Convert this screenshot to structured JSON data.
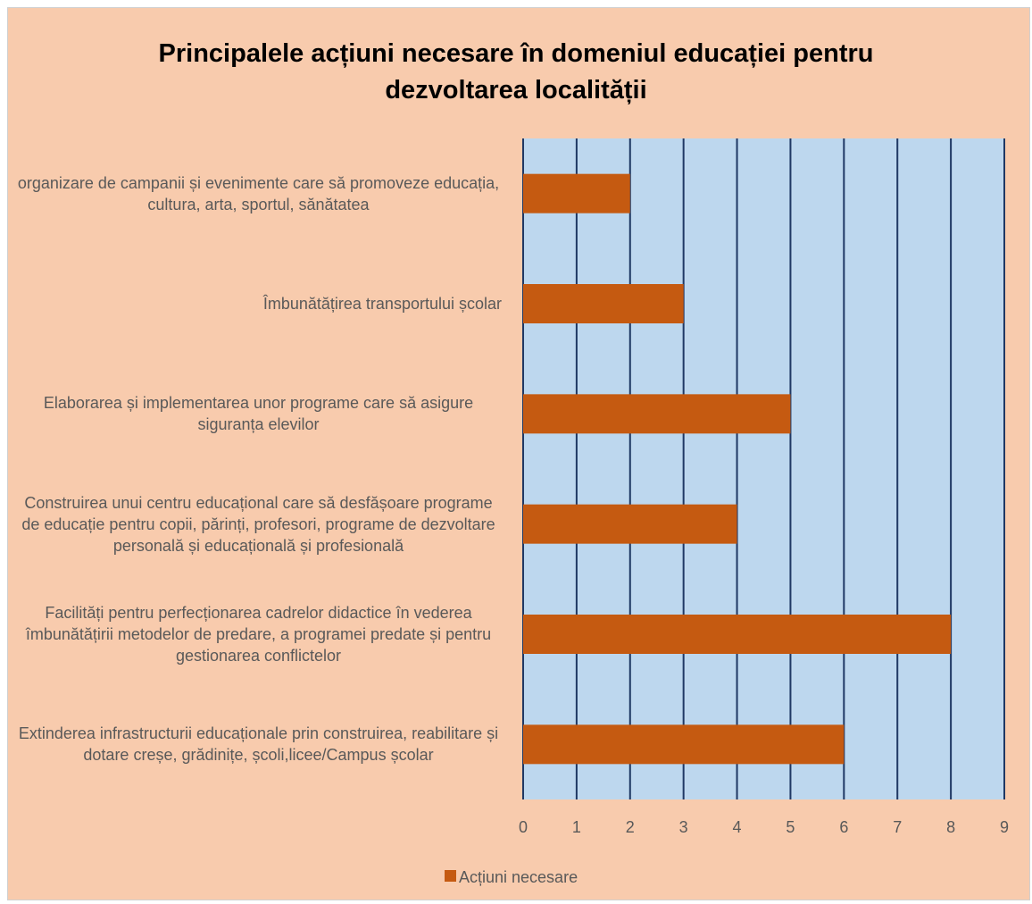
{
  "chart_data": {
    "type": "barh",
    "title": "Principalele acțiuni necesare în domeniul educației pentru dezvoltarea localității",
    "categories": [
      "organizare de campanii și evenimente care să promoveze educația, cultura, arta, sportul, sănătatea",
      "Îmbunătățirea transportului școlar",
      "Elaborarea și implementarea unor programe care să asigure siguranța elevilor",
      "Construirea unui centru educațional care să desfășoare programe de educație pentru copii, părinți, profesori, programe de dezvoltare personală și educațională și profesională",
      "Facilități pentru perfecționarea cadrelor didactice în vederea îmbunătățirii metodelor de predare, a programei predate și pentru gestionarea conflictelor",
      "Extinderea infrastructurii educaționale prin construirea, reabilitare și dotare creșe, grădinițe, școli,licee/Campus școlar"
    ],
    "series": [
      {
        "name": "Acțiuni necesare",
        "color": "#c55a11",
        "values": [
          2,
          3,
          5,
          4,
          8,
          6
        ]
      }
    ],
    "xlim": [
      0,
      9
    ],
    "xticks": [
      0,
      1,
      2,
      3,
      4,
      5,
      6,
      7,
      8,
      9
    ],
    "grid": true,
    "legend": "bottom"
  }
}
